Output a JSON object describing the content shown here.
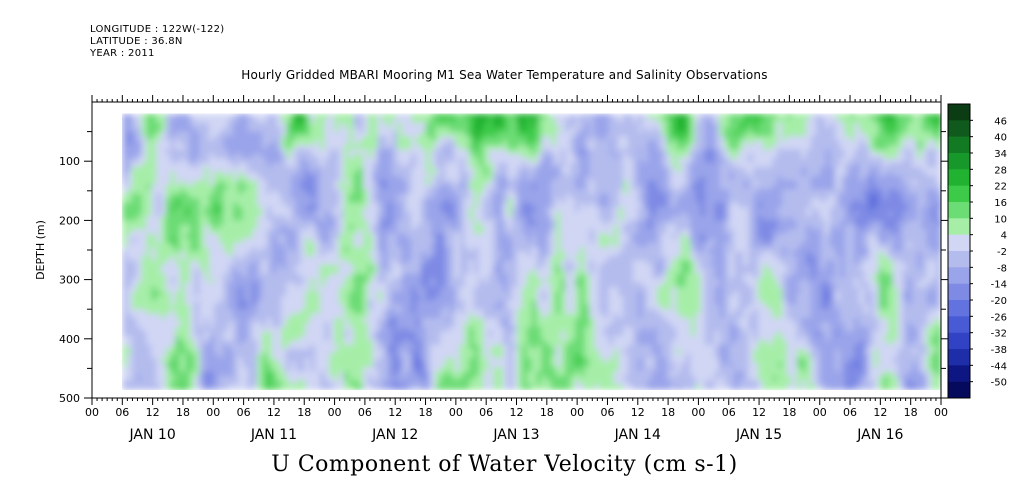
{
  "header": {
    "longitude": "LONGITUDE : 122W(-122)",
    "latitude": "LATITUDE : 36.8N",
    "year": "YEAR : 2011"
  },
  "title": "Hourly Gridded MBARI Mooring M1 Sea Water Temperature and Salinity Observations",
  "xlabel": "U Component of Water Velocity (cm s-1)",
  "chart_data": {
    "type": "heatmap",
    "title": "Hourly Gridded MBARI Mooring M1 Sea Water Temperature and Salinity Observations",
    "xlabel": "",
    "ylabel": "DEPTH (m)",
    "variable": "U Component of Water Velocity (cm s-1)",
    "x_hour_tick_labels": [
      "00",
      "06",
      "12",
      "18",
      "00",
      "06",
      "12",
      "18",
      "00",
      "06",
      "12",
      "18",
      "00",
      "06",
      "12",
      "18",
      "00",
      "06",
      "12",
      "18",
      "00",
      "06",
      "12",
      "18",
      "00",
      "06",
      "12",
      "18",
      "00"
    ],
    "x_day_labels": [
      "JAN 10",
      "JAN 11",
      "JAN 12",
      "JAN 13",
      "JAN 14",
      "JAN 15",
      "JAN 16"
    ],
    "x_range": [
      "2011-01-10T00:00",
      "2011-01-17T00:00"
    ],
    "data_time_range": [
      "2011-01-10T06:00",
      "2011-01-17T00:00"
    ],
    "y_ticks": [
      100,
      200,
      300,
      400,
      500
    ],
    "y_tick_labels": [
      "100",
      "200",
      "300",
      "400",
      "500"
    ],
    "y_range": [
      500,
      0
    ],
    "y_data_range": [
      20,
      485
    ],
    "colorbar": {
      "levels": [
        46,
        40,
        34,
        28,
        22,
        16,
        10,
        4,
        -2,
        -8,
        -14,
        -20,
        -26,
        -32,
        -38,
        -44,
        -50
      ],
      "labels": [
        "46",
        "40",
        "34",
        "28",
        "22",
        "16",
        "10",
        "4",
        "-2",
        "-8",
        "-14",
        "-20",
        "-26",
        "-32",
        "-38",
        "-44",
        "-50"
      ],
      "colors": [
        "#0c3c14",
        "#0f5a1c",
        "#127a22",
        "#17982a",
        "#22b232",
        "#3cca48",
        "#6cdc74",
        "#a6eea8",
        "#d0d6f4",
        "#b4bcee",
        "#9aa4ea",
        "#7e8ae4",
        "#6272de",
        "#485ad4",
        "#3242c4",
        "#1e2ea8",
        "#0e1684",
        "#060a5c"
      ]
    },
    "grid": false
  }
}
